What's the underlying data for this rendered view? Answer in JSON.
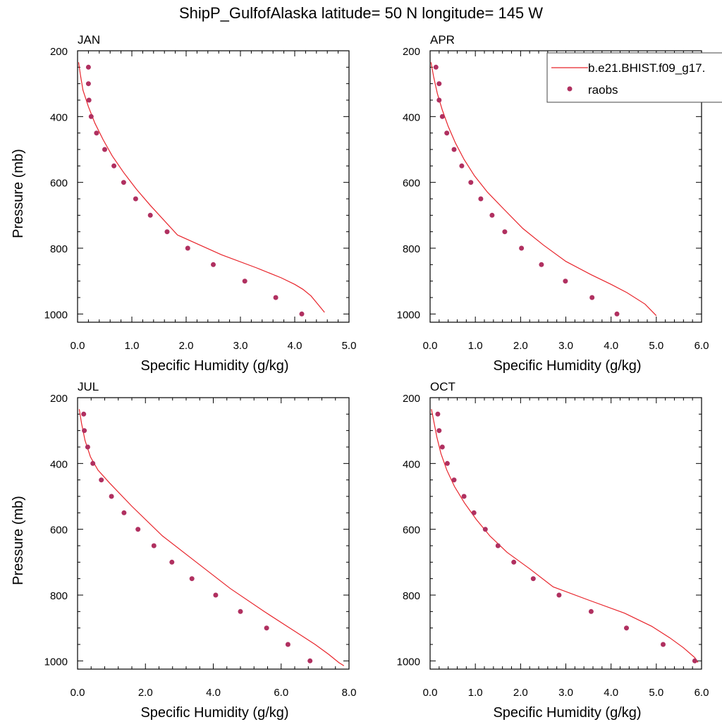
{
  "title": "ShipP_GulfofAlaska  latitude= 50 N longitude= 145 W",
  "legend": {
    "model_label": "b.e21.BHIST.f09_g17.",
    "obs_label": "raobs"
  },
  "colors": {
    "model_line": "#e8242b",
    "obs_marker": "#b03060"
  },
  "chart_data": [
    {
      "type": "line",
      "label": "JAN",
      "xlabel": "Specific Humidity (g/kg)",
      "ylabel": "Pressure (mb)",
      "xlim": [
        0,
        5
      ],
      "ylim": [
        200,
        1025
      ],
      "y_inverted": true,
      "x_ticks": [
        "0.0",
        "1.0",
        "2.0",
        "3.0",
        "4.0",
        "5.0"
      ],
      "y_ticks": [
        "200",
        "400",
        "600",
        "800",
        "1000"
      ],
      "series": [
        {
          "name": "b.e21.BHIST.f09_g17.",
          "type": "line",
          "x": [
            0.02,
            0.05,
            0.1,
            0.2,
            0.32,
            0.47,
            0.64,
            0.85,
            1.08,
            1.34,
            1.84,
            2.65,
            3.3,
            3.75,
            4.0,
            4.15,
            4.3,
            4.4,
            4.55
          ],
          "y": [
            235,
            270,
            320,
            370,
            420,
            470,
            520,
            570,
            620,
            670,
            760,
            820,
            860,
            890,
            910,
            925,
            945,
            965,
            995
          ]
        },
        {
          "name": "raobs",
          "type": "scatter",
          "x": [
            0.2,
            0.2,
            0.21,
            0.25,
            0.35,
            0.5,
            0.67,
            0.85,
            1.07,
            1.34,
            1.65,
            2.03,
            2.5,
            3.08,
            3.65,
            4.13
          ],
          "y": [
            250,
            300,
            350,
            400,
            450,
            500,
            550,
            600,
            650,
            700,
            750,
            800,
            850,
            900,
            950,
            1000
          ]
        }
      ]
    },
    {
      "type": "line",
      "label": "APR",
      "xlabel": "Specific Humidity (g/kg)",
      "ylabel": "",
      "xlim": [
        0,
        6
      ],
      "ylim": [
        200,
        1025
      ],
      "y_inverted": true,
      "x_ticks": [
        "0.0",
        "1.0",
        "2.0",
        "3.0",
        "4.0",
        "5.0",
        "6.0"
      ],
      "y_ticks": [
        "200",
        "400",
        "600",
        "800",
        "1000"
      ],
      "series": [
        {
          "name": "b.e21.BHIST.f09_g17.",
          "type": "line",
          "x": [
            0.02,
            0.08,
            0.16,
            0.27,
            0.4,
            0.56,
            0.75,
            0.98,
            1.27,
            1.62,
            2.05,
            2.5,
            3.0,
            3.55,
            4.0,
            4.35,
            4.75,
            5.0
          ],
          "y": [
            235,
            280,
            330,
            380,
            430,
            480,
            530,
            580,
            630,
            680,
            740,
            790,
            840,
            880,
            910,
            935,
            970,
            1005
          ]
        },
        {
          "name": "raobs",
          "type": "scatter",
          "x": [
            0.13,
            0.2,
            0.2,
            0.27,
            0.37,
            0.53,
            0.7,
            0.9,
            1.12,
            1.37,
            1.65,
            2.02,
            2.46,
            2.99,
            3.58,
            4.13
          ],
          "y": [
            250,
            300,
            350,
            400,
            450,
            500,
            550,
            600,
            650,
            700,
            750,
            800,
            850,
            900,
            950,
            1000
          ]
        }
      ]
    },
    {
      "type": "line",
      "label": "JUL",
      "xlabel": "Specific Humidity (g/kg)",
      "ylabel": "Pressure (mb)",
      "xlim": [
        0,
        8
      ],
      "ylim": [
        200,
        1025
      ],
      "y_inverted": true,
      "x_ticks": [
        "0.0",
        "2.0",
        "4.0",
        "6.0",
        "8.0"
      ],
      "y_ticks": [
        "200",
        "400",
        "600",
        "800",
        "1000"
      ],
      "series": [
        {
          "name": "b.e21.BHIST.f09_g17.",
          "type": "line",
          "x": [
            0.05,
            0.12,
            0.22,
            0.38,
            0.6,
            0.95,
            1.6,
            2.5,
            3.5,
            4.5,
            5.5,
            6.4,
            7.0,
            7.4,
            7.7,
            7.85
          ],
          "y": [
            235,
            280,
            330,
            380,
            420,
            460,
            530,
            620,
            700,
            780,
            850,
            910,
            950,
            980,
            1005,
            1015
          ]
        },
        {
          "name": "raobs",
          "type": "scatter",
          "x": [
            0.18,
            0.2,
            0.3,
            0.45,
            0.7,
            1.0,
            1.37,
            1.78,
            2.25,
            2.78,
            3.37,
            4.07,
            4.8,
            5.57,
            6.2,
            6.85
          ],
          "y": [
            250,
            300,
            350,
            400,
            450,
            500,
            550,
            600,
            650,
            700,
            750,
            800,
            850,
            900,
            950,
            1000
          ]
        }
      ]
    },
    {
      "type": "line",
      "label": "OCT",
      "xlabel": "Specific Humidity (g/kg)",
      "ylabel": "",
      "xlim": [
        0,
        6
      ],
      "ylim": [
        200,
        1025
      ],
      "y_inverted": true,
      "x_ticks": [
        "0.0",
        "1.0",
        "2.0",
        "3.0",
        "4.0",
        "5.0",
        "6.0"
      ],
      "y_ticks": [
        "200",
        "400",
        "600",
        "800",
        "1000"
      ],
      "series": [
        {
          "name": "b.e21.BHIST.f09_g17.",
          "type": "line",
          "x": [
            0.03,
            0.08,
            0.15,
            0.24,
            0.37,
            0.54,
            0.76,
            1.02,
            1.32,
            1.7,
            2.2,
            2.72,
            3.5,
            4.3,
            4.9,
            5.3,
            5.6,
            5.85,
            5.92
          ],
          "y": [
            235,
            270,
            320,
            370,
            420,
            470,
            520,
            570,
            620,
            670,
            720,
            775,
            815,
            855,
            895,
            930,
            960,
            990,
            1005
          ]
        },
        {
          "name": "raobs",
          "type": "scatter",
          "x": [
            0.17,
            0.2,
            0.27,
            0.38,
            0.53,
            0.75,
            0.97,
            1.22,
            1.5,
            1.85,
            2.28,
            2.85,
            3.56,
            4.34,
            5.15,
            5.85
          ],
          "y": [
            250,
            300,
            350,
            400,
            450,
            500,
            550,
            600,
            650,
            700,
            750,
            800,
            850,
            900,
            950,
            1000
          ]
        }
      ]
    }
  ]
}
